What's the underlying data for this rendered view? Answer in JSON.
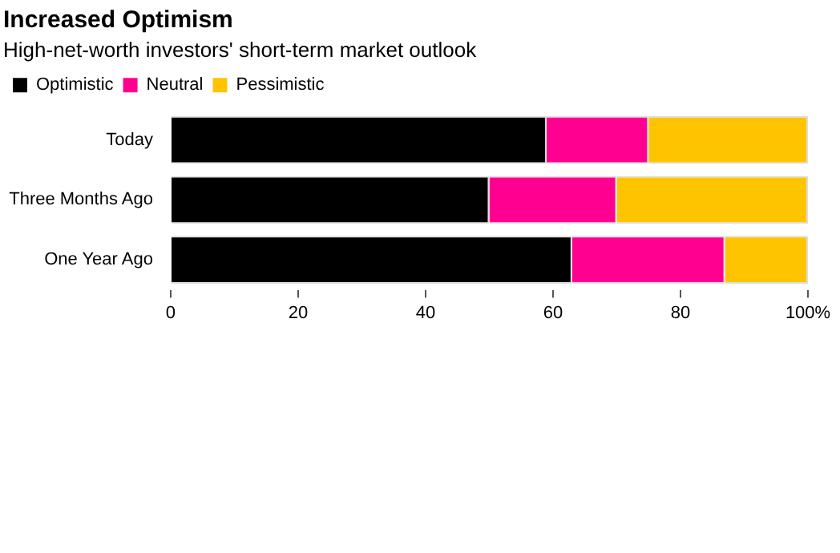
{
  "chart_data": {
    "type": "bar",
    "orientation": "horizontal",
    "stacked": true,
    "title": "Increased Optimism",
    "subtitle": "High-net-worth investors' short-term market outlook",
    "categories": [
      "Today",
      "Three Months Ago",
      "One Year Ago"
    ],
    "series": [
      {
        "name": "Optimistic",
        "color": "#000000",
        "values": [
          59,
          50,
          63
        ]
      },
      {
        "name": "Neutral",
        "color": "#ff0090",
        "values": [
          16,
          20,
          24
        ]
      },
      {
        "name": "Pessimistic",
        "color": "#ffc400",
        "values": [
          25,
          30,
          13
        ]
      }
    ],
    "xlim": [
      0,
      100
    ],
    "xticks": [
      0,
      20,
      40,
      60,
      80,
      {
        "value": 100,
        "label": "100%"
      }
    ],
    "grid": false,
    "legend": "top left"
  }
}
